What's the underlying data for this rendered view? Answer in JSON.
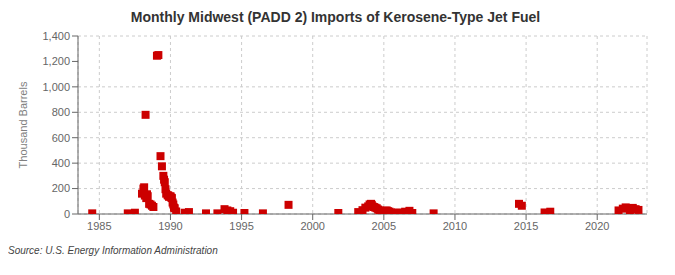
{
  "chart_data": {
    "type": "scatter",
    "title": "Monthly Midwest (PADD 2) Imports of Kerosene-Type Jet Fuel",
    "y_label": "Thousand Barrels",
    "annotations": [
      "Source: U.S. Energy Information Administration"
    ],
    "color": "#cc0000",
    "marker": "square",
    "grid": true,
    "xlim": [
      1983.5,
      2023.5
    ],
    "ylim": [
      0,
      1400
    ],
    "xticks": [
      1985,
      1990,
      1995,
      2000,
      2005,
      2010,
      2015,
      2020
    ],
    "yticks": [
      0,
      200,
      400,
      600,
      800,
      {
        "value": 1000,
        "label": "1,000"
      },
      {
        "value": 1200,
        "label": "1,200"
      },
      {
        "value": 1400,
        "label": "1,400"
      }
    ],
    "x": [
      1984.5,
      1987.0,
      1987.5,
      1988.0,
      1988.1,
      1988.15,
      1988.2,
      1988.3,
      1988.35,
      1988.4,
      1988.5,
      1988.6,
      1988.7,
      1988.8,
      1988.25,
      1989.05,
      1989.15,
      1989.3,
      1989.4,
      1989.5,
      1989.55,
      1989.6,
      1989.65,
      1989.7,
      1989.8,
      1989.85,
      1989.9,
      1990.0,
      1990.05,
      1990.1,
      1990.15,
      1990.2,
      1990.25,
      1990.3,
      1990.4,
      1991.0,
      1991.3,
      1992.5,
      1993.3,
      1993.8,
      1994.0,
      1994.2,
      1994.4,
      1995.2,
      1996.5,
      1998.3,
      2001.8,
      2003.2,
      2003.5,
      2003.7,
      2003.9,
      2004.0,
      2004.1,
      2004.15,
      2004.2,
      2004.3,
      2004.4,
      2004.5,
      2004.6,
      2004.7,
      2004.8,
      2004.9,
      2005.0,
      2005.1,
      2005.2,
      2005.3,
      2005.4,
      2005.5,
      2005.6,
      2005.8,
      2006.0,
      2006.3,
      2006.5,
      2006.8,
      2007.0,
      2008.5,
      2014.5,
      2014.7,
      2016.3,
      2016.7,
      2021.5,
      2021.8,
      2022.0,
      2022.3,
      2022.5,
      2022.7,
      2022.9
    ],
    "values": [
      5,
      5,
      10,
      160,
      200,
      210,
      145,
      125,
      155,
      140,
      80,
      75,
      65,
      55,
      780,
      1245,
      1250,
      455,
      375,
      300,
      270,
      250,
      195,
      160,
      148,
      145,
      135,
      140,
      130,
      125,
      90,
      75,
      50,
      45,
      20,
      10,
      15,
      5,
      5,
      38,
      28,
      22,
      10,
      8,
      5,
      72,
      8,
      15,
      30,
      50,
      60,
      75,
      80,
      72,
      60,
      55,
      50,
      45,
      35,
      28,
      22,
      18,
      20,
      25,
      28,
      22,
      18,
      12,
      8,
      8,
      12,
      8,
      18,
      25,
      8,
      5,
      80,
      65,
      12,
      18,
      28,
      42,
      52,
      28,
      48,
      38,
      32
    ]
  }
}
